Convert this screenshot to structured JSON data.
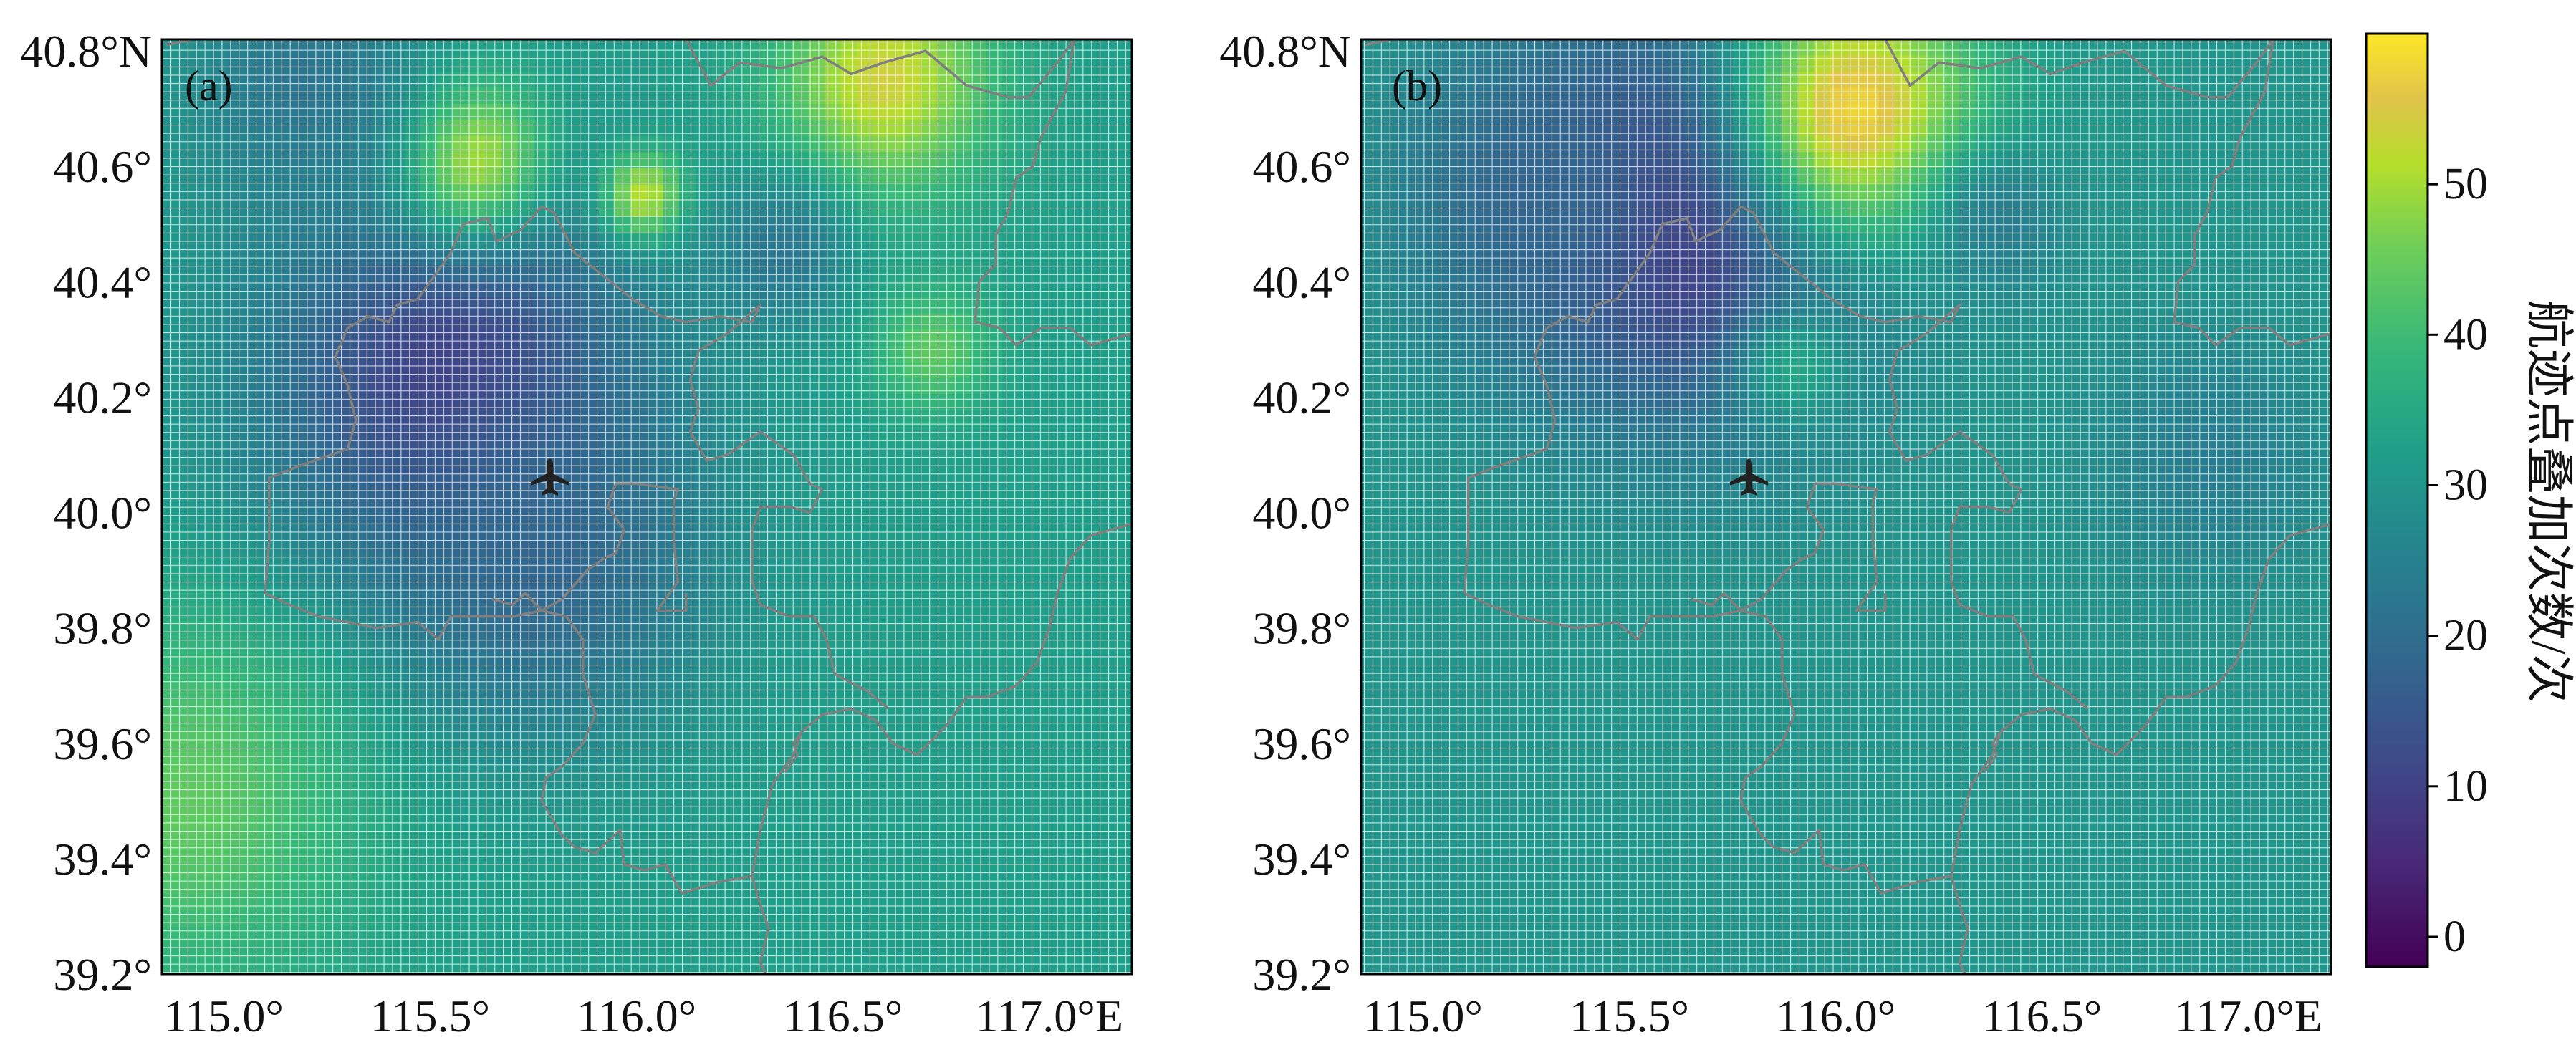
{
  "panels": [
    {
      "id": "a",
      "label": "(a)",
      "xticks": [
        "115.0°",
        "115.5°",
        "116.0°",
        "116.5°",
        "117.0°E"
      ],
      "yticks": [
        "40.8°N",
        "40.6°",
        "40.4°",
        "40.2°",
        "40.0°",
        "39.8°",
        "39.6°",
        "39.4°",
        "39.2°"
      ],
      "base_value": 32,
      "blobs": [
        {
          "lon": 115.55,
          "lat": 40.22,
          "value": 8,
          "radius_deg": 0.32
        },
        {
          "lon": 115.75,
          "lat": 39.92,
          "value": 18,
          "radius_deg": 0.28
        },
        {
          "lon": 115.6,
          "lat": 40.62,
          "value": 52,
          "radius_deg": 0.13
        },
        {
          "lon": 116.02,
          "lat": 40.55,
          "value": 52,
          "radius_deg": 0.07
        },
        {
          "lon": 116.6,
          "lat": 40.75,
          "value": 54,
          "radius_deg": 0.18
        },
        {
          "lon": 116.35,
          "lat": 40.45,
          "value": 22,
          "radius_deg": 0.12
        },
        {
          "lon": 116.72,
          "lat": 40.28,
          "value": 44,
          "radius_deg": 0.1
        },
        {
          "lon": 115.2,
          "lat": 40.75,
          "value": 22,
          "radius_deg": 0.2
        },
        {
          "lon": 114.9,
          "lat": 39.5,
          "value": 44,
          "radius_deg": 0.3
        }
      ]
    },
    {
      "id": "b",
      "label": "(b)",
      "xticks": [
        "115.0°",
        "115.5°",
        "116.0°",
        "116.5°",
        "117.0°E"
      ],
      "yticks": [
        "40.8°N",
        "40.6°",
        "40.4°",
        "40.2°",
        "40.0°",
        "39.8°",
        "39.6°",
        "39.4°",
        "39.2°"
      ],
      "base_value": 30,
      "blobs": [
        {
          "lon": 115.65,
          "lat": 40.52,
          "value": 4,
          "radius_deg": 0.32
        },
        {
          "lon": 116.05,
          "lat": 40.7,
          "value": 58,
          "radius_deg": 0.22
        },
        {
          "lon": 115.3,
          "lat": 40.55,
          "value": 18,
          "radius_deg": 0.22
        },
        {
          "lon": 116.4,
          "lat": 40.5,
          "value": 24,
          "radius_deg": 0.12
        },
        {
          "lon": 116.9,
          "lat": 40.1,
          "value": 24,
          "radius_deg": 0.2
        },
        {
          "lon": 115.9,
          "lat": 40.25,
          "value": 34,
          "radius_deg": 0.1
        }
      ]
    }
  ],
  "extent": {
    "lon_min": 114.85,
    "lon_max": 117.2,
    "lat_min": 39.2,
    "lat_max": 40.82
  },
  "airport": {
    "lon": 115.79,
    "lat": 40.06,
    "icon": "airplane-icon"
  },
  "colorbar": {
    "title": "航迹点叠加次数/次",
    "min": -2,
    "max": 60,
    "ticks": [
      "0",
      "10",
      "20",
      "30",
      "40",
      "50"
    ],
    "tick_values": [
      0,
      10,
      20,
      30,
      40,
      50
    ],
    "colormap": "viridis"
  },
  "colors": {
    "grid_line": "#ffffff",
    "boundary": "#7f7f7f",
    "frame": "#000000"
  }
}
